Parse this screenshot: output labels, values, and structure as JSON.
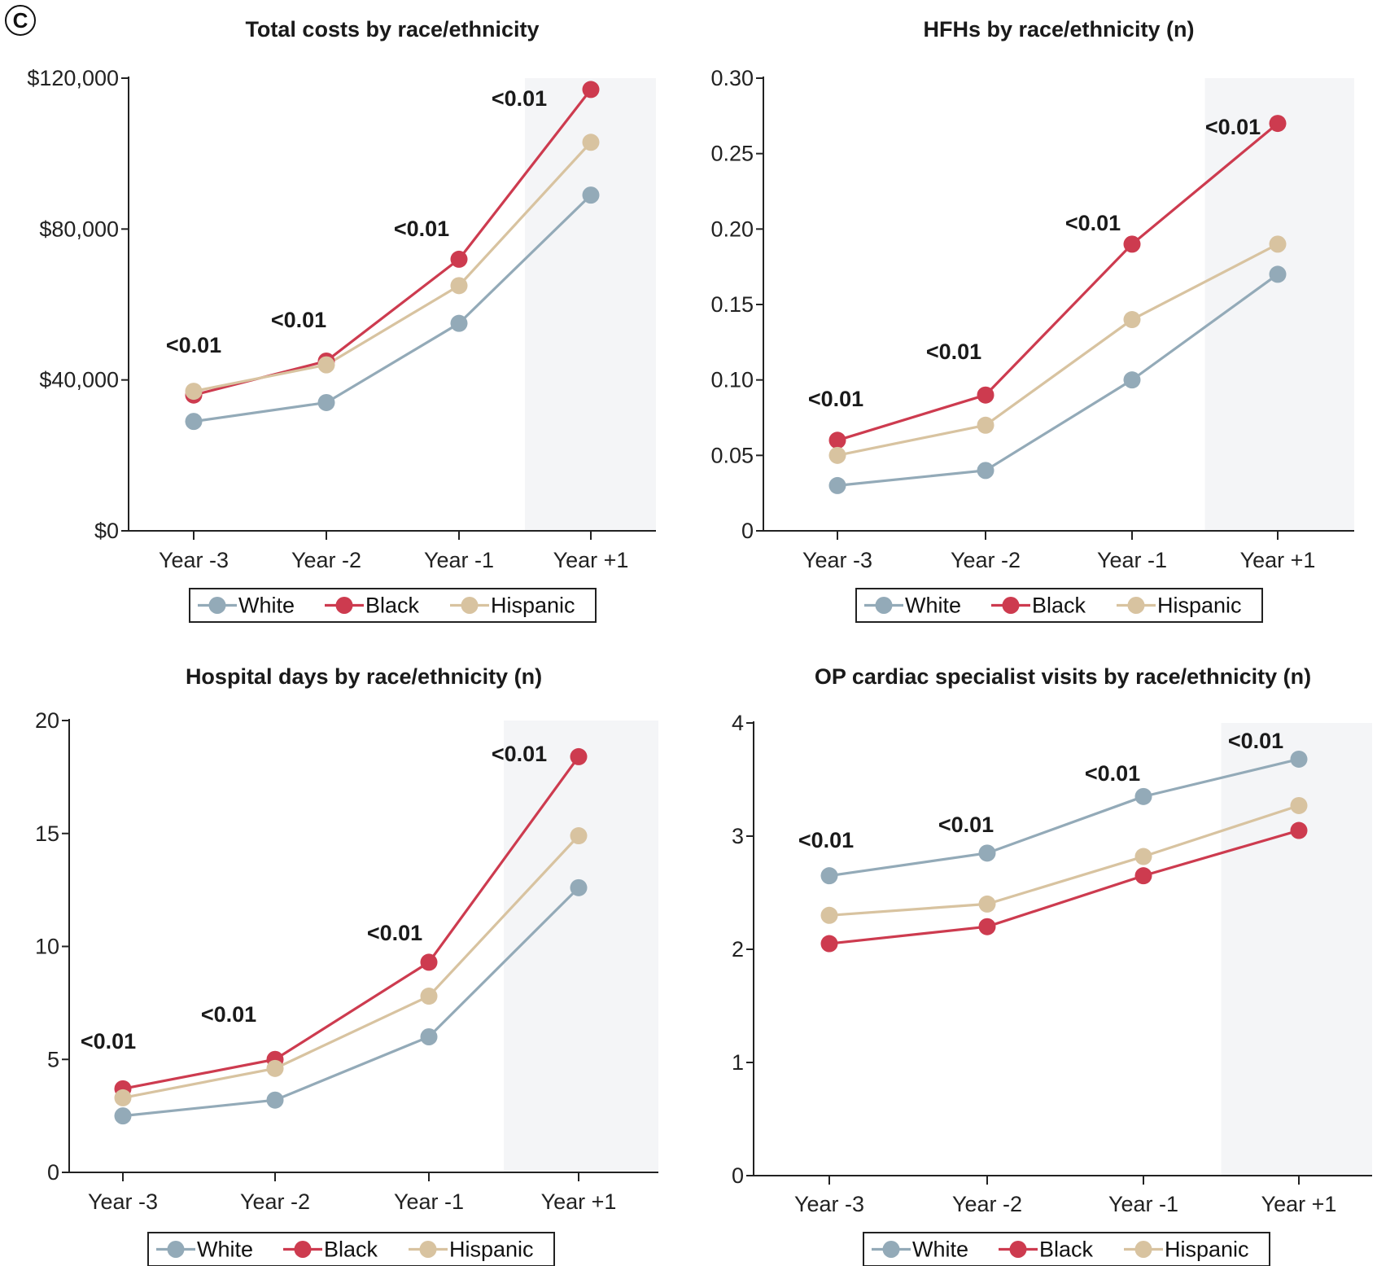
{
  "panel_label": "C",
  "colors": {
    "White": "#93aab8",
    "Black": "#cd3b4f",
    "Hispanic": "#d8c3a0",
    "future_band": "#f4f5f7"
  },
  "legend": [
    "White",
    "Black",
    "Hispanic"
  ],
  "chart_data": [
    {
      "type": "line",
      "title": "Total costs by race/ethnicity",
      "categories": [
        "Year -3",
        "Year -2",
        "Year -1",
        "Year +1"
      ],
      "y_tick_labels": [
        "$0",
        "$40,000",
        "$80,000",
        "$120,000"
      ],
      "y_ticks": [
        0,
        40000,
        80000,
        120000
      ],
      "ylim": [
        0,
        120000
      ],
      "shaded_categories": [
        "Year +1"
      ],
      "series": [
        {
          "name": "White",
          "values": [
            29000,
            34000,
            55000,
            89000
          ]
        },
        {
          "name": "Black",
          "values": [
            36000,
            45000,
            72000,
            117000
          ]
        },
        {
          "name": "Hispanic",
          "values": [
            37000,
            44000,
            65000,
            103000
          ]
        }
      ],
      "annotations": [
        "<0.01",
        "<0.01",
        "<0.01",
        "<0.01"
      ],
      "legend": [
        "White",
        "Black",
        "Hispanic"
      ]
    },
    {
      "type": "line",
      "title": "HFHs by race/ethnicity (n)",
      "categories": [
        "Year -3",
        "Year -2",
        "Year -1",
        "Year +1"
      ],
      "y_tick_labels": [
        "0",
        "0.05",
        "0.10",
        "0.15",
        "0.20",
        "0.25",
        "0.30"
      ],
      "y_ticks": [
        0,
        0.05,
        0.1,
        0.15,
        0.2,
        0.25,
        0.3
      ],
      "ylim": [
        0,
        0.3
      ],
      "shaded_categories": [
        "Year +1"
      ],
      "series": [
        {
          "name": "White",
          "values": [
            0.03,
            0.04,
            0.1,
            0.17
          ]
        },
        {
          "name": "Black",
          "values": [
            0.06,
            0.09,
            0.19,
            0.27
          ]
        },
        {
          "name": "Hispanic",
          "values": [
            0.05,
            0.07,
            0.14,
            0.19
          ]
        }
      ],
      "annotations": [
        "<0.01",
        "<0.01",
        "<0.01",
        "<0.01"
      ],
      "legend": [
        "White",
        "Black",
        "Hispanic"
      ]
    },
    {
      "type": "line",
      "title": "Hospital days by race/ethnicity (n)",
      "categories": [
        "Year -3",
        "Year -2",
        "Year -1",
        "Year +1"
      ],
      "y_tick_labels": [
        "0",
        "5",
        "10",
        "15",
        "20"
      ],
      "y_ticks": [
        0,
        5,
        10,
        15,
        20
      ],
      "ylim": [
        0,
        20
      ],
      "shaded_categories": [
        "Year +1"
      ],
      "series": [
        {
          "name": "White",
          "values": [
            2.5,
            3.2,
            6.0,
            12.6
          ]
        },
        {
          "name": "Black",
          "values": [
            3.7,
            5.0,
            9.3,
            18.4
          ]
        },
        {
          "name": "Hispanic",
          "values": [
            3.3,
            4.6,
            7.8,
            14.9
          ]
        }
      ],
      "annotations": [
        "<0.01",
        "<0.01",
        "<0.01",
        "<0.01"
      ],
      "legend": [
        "White",
        "Black",
        "Hispanic"
      ]
    },
    {
      "type": "line",
      "title": "OP cardiac specialist visits by race/ethnicity (n)",
      "categories": [
        "Year -3",
        "Year -2",
        "Year -1",
        "Year +1"
      ],
      "y_tick_labels": [
        "0",
        "1",
        "2",
        "3",
        "4"
      ],
      "y_ticks": [
        0,
        1,
        2,
        3,
        4
      ],
      "ylim": [
        0,
        4
      ],
      "shaded_categories": [
        "Year +1"
      ],
      "series": [
        {
          "name": "White",
          "values": [
            2.65,
            2.85,
            3.35,
            3.68
          ]
        },
        {
          "name": "Black",
          "values": [
            2.05,
            2.2,
            2.65,
            3.05
          ]
        },
        {
          "name": "Hispanic",
          "values": [
            2.3,
            2.4,
            2.82,
            3.27
          ]
        }
      ],
      "annotations": [
        "<0.01",
        "<0.01",
        "<0.01",
        "<0.01"
      ],
      "legend": [
        "White",
        "Black",
        "Hispanic"
      ]
    }
  ]
}
